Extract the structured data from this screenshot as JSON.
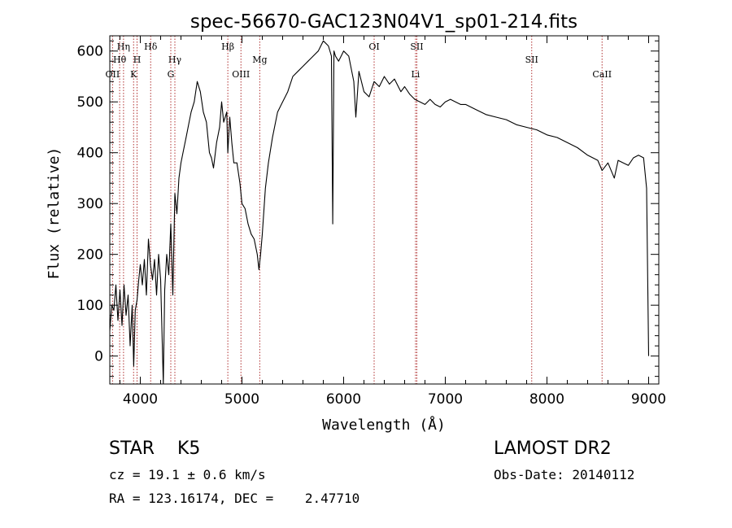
{
  "chart_data": {
    "type": "line",
    "title": "spec-56670-GAC123N04V1_sp01-214.fits",
    "xlabel": "Wavelength (Å)",
    "ylabel": "Flux (relative)",
    "xlim": [
      3700,
      9100
    ],
    "ylim": [
      -55,
      630
    ],
    "x_ticks": [
      4000,
      5000,
      6000,
      7000,
      8000,
      9000
    ],
    "y_ticks": [
      0,
      100,
      200,
      300,
      400,
      500,
      600
    ],
    "grid": false,
    "series": [
      {
        "x": [
          3700,
          3720,
          3740,
          3760,
          3780,
          3800,
          3820,
          3840,
          3860,
          3880,
          3900,
          3920,
          3935,
          3950,
          3968,
          3985,
          4000,
          4020,
          4040,
          4060,
          4080,
          4100,
          4120,
          4140,
          4160,
          4180,
          4200,
          4226,
          4240,
          4260,
          4280,
          4300,
          4320,
          4340,
          4360,
          4380,
          4400,
          4420,
          4450,
          4480,
          4500,
          4530,
          4560,
          4590,
          4620,
          4650,
          4680,
          4700,
          4720,
          4750,
          4780,
          4800,
          4820,
          4850,
          4861,
          4880,
          4900,
          4920,
          4950,
          4980,
          5000,
          5030,
          5060,
          5090,
          5120,
          5150,
          5167,
          5183,
          5200,
          5230,
          5260,
          5300,
          5350,
          5400,
          5450,
          5500,
          5550,
          5600,
          5650,
          5700,
          5750,
          5800,
          5850,
          5880,
          5893,
          5905,
          5920,
          5950,
          6000,
          6050,
          6080,
          6100,
          6120,
          6150,
          6200,
          6250,
          6300,
          6350,
          6400,
          6450,
          6500,
          6563,
          6600,
          6650,
          6700,
          6750,
          6800,
          6850,
          6900,
          6950,
          7000,
          7050,
          7100,
          7150,
          7200,
          7300,
          7400,
          7500,
          7600,
          7700,
          7800,
          7900,
          8000,
          8100,
          8200,
          8300,
          8400,
          8500,
          8542,
          8600,
          8662,
          8700,
          8750,
          8800,
          8850,
          8900,
          8950,
          8980,
          9000
        ],
        "values": [
          50,
          100,
          90,
          140,
          70,
          130,
          60,
          140,
          80,
          120,
          20,
          100,
          -20,
          90,
          110,
          150,
          180,
          140,
          190,
          120,
          230,
          180,
          150,
          190,
          120,
          200,
          150,
          -60,
          130,
          200,
          160,
          260,
          120,
          320,
          280,
          350,
          380,
          400,
          430,
          460,
          480,
          500,
          540,
          520,
          480,
          460,
          400,
          390,
          370,
          420,
          450,
          500,
          460,
          480,
          400,
          470,
          420,
          380,
          380,
          340,
          300,
          290,
          260,
          240,
          230,
          200,
          170,
          200,
          240,
          330,
          380,
          430,
          480,
          500,
          520,
          550,
          560,
          570,
          580,
          590,
          600,
          620,
          610,
          590,
          260,
          600,
          590,
          580,
          600,
          590,
          560,
          540,
          470,
          560,
          520,
          510,
          540,
          530,
          550,
          535,
          545,
          520,
          530,
          515,
          505,
          500,
          495,
          505,
          495,
          490,
          500,
          505,
          500,
          495,
          495,
          485,
          475,
          470,
          465,
          455,
          450,
          445,
          435,
          430,
          420,
          410,
          395,
          385,
          365,
          380,
          350,
          385,
          380,
          375,
          390,
          395,
          390,
          330,
          0
        ]
      }
    ],
    "line_markers": [
      {
        "label": "Hη",
        "x": 3835,
        "row": 1
      },
      {
        "label": "Hθ",
        "x": 3797,
        "row": 2
      },
      {
        "label": "OII",
        "x": 3727,
        "row": 3
      },
      {
        "label": "Hδ",
        "x": 4102,
        "row": 1
      },
      {
        "label": "H",
        "x": 3968,
        "row": 2
      },
      {
        "label": "K",
        "x": 3934,
        "row": 3
      },
      {
        "label": "Hγ",
        "x": 4340,
        "row": 2
      },
      {
        "label": "G",
        "x": 4300,
        "row": 3
      },
      {
        "label": "Hβ",
        "x": 4861,
        "row": 1
      },
      {
        "label": "OIII",
        "x": 4990,
        "row": 3
      },
      {
        "label": "Mg",
        "x": 5175,
        "row": 2
      },
      {
        "label": "OI",
        "x": 6300,
        "row": 1
      },
      {
        "label": "SII",
        "x": 6720,
        "row": 1
      },
      {
        "label": "Li",
        "x": 6707,
        "row": 3
      },
      {
        "label": "SII",
        "x": 7850,
        "row": 2
      },
      {
        "label": "CaII",
        "x": 8542,
        "row": 3
      }
    ]
  },
  "info": {
    "class_text": "STAR    K5",
    "survey_text": "LAMOST DR2",
    "cz_text": "cz = 19.1 ± 0.6 km/s",
    "obs_date_text": "Obs-Date: 20140112",
    "radec_text": "RA = 123.16174, DEC =    2.47710"
  }
}
